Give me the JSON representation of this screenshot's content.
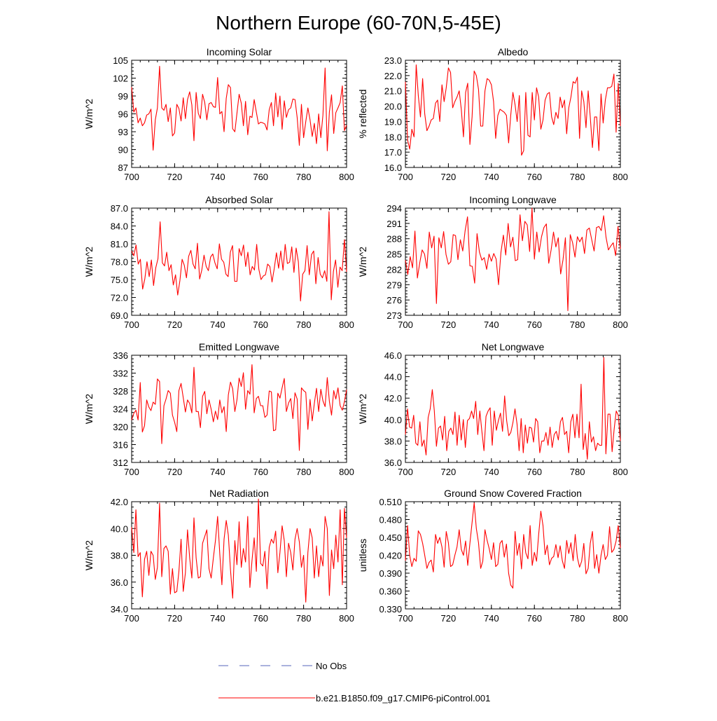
{
  "figure": {
    "title": "Northern Europe (60-70N,5-45E)",
    "line_color": "#ff0000",
    "obs_color": "#5566bb"
  },
  "legend": {
    "obs_label": "No Obs",
    "model_label": "b.e21.B1850.f09_g17.CMIP6-piControl.001"
  },
  "chart_data": [
    {
      "type": "line",
      "title": "Incoming Solar",
      "ylabel": "W/m^2",
      "xlim": [
        700,
        800
      ],
      "ylim": [
        87,
        105
      ],
      "xticks": [
        "700",
        "720",
        "740",
        "760",
        "780",
        "800"
      ],
      "yticks": [
        "87",
        "90",
        "93",
        "96",
        "99",
        "102",
        "105"
      ],
      "values": [
        100.5,
        96.3,
        97.0,
        94.5,
        95.3,
        94.0,
        94.5,
        95.8,
        96.0,
        96.8,
        89.9,
        95.0,
        97.0,
        104.0,
        97.0,
        96.6,
        97.6,
        94.7,
        97.0,
        92.3,
        92.8,
        97.6,
        96.9,
        94.8,
        98.7,
        95.2,
        98.4,
        99.7,
        97.5,
        91.5,
        99.6,
        96.1,
        95.2,
        99.3,
        97.9,
        95.0,
        97.7,
        97.9,
        97.2,
        97.1,
        102.1,
        96.0,
        96.4,
        93.0,
        98.6,
        100.9,
        100.4,
        93.5,
        93.0,
        96.1,
        99.3,
        97.8,
        94.0,
        98.1,
        92.5,
        95.6,
        95.4,
        98.4,
        96.3,
        94.3,
        94.6,
        94.5,
        94.3,
        93.3,
        96.7,
        97.9,
        94.0,
        99.5,
        95.5,
        99.0,
        93.4,
        98.2,
        95.4,
        96.7,
        97.0,
        98.5,
        98.4,
        95.4,
        90.7,
        97.6,
        92.0,
        94.7,
        97.0,
        95.0,
        92.2,
        94.4,
        91.0,
        96.0,
        92.0,
        95.8,
        103.7,
        89.8,
        96.3,
        99.2,
        92.7,
        96.2,
        97.0,
        97.9,
        100.7,
        93.2,
        94.1
      ]
    },
    {
      "type": "line",
      "title": "Albedo",
      "ylabel": "% reflected",
      "xlim": [
        700,
        800
      ],
      "ylim": [
        16.0,
        23.0
      ],
      "xticks": [
        "700",
        "720",
        "740",
        "760",
        "780",
        "800"
      ],
      "yticks": [
        "16.0",
        "17.0",
        "18.0",
        "19.0",
        "20.0",
        "21.0",
        "22.0",
        "23.0"
      ],
      "values": [
        21.6,
        17.8,
        17.2,
        18.5,
        18.0,
        22.7,
        20.7,
        19.3,
        21.8,
        19.5,
        18.4,
        18.7,
        19.1,
        19.2,
        20.2,
        20.4,
        19.0,
        21.4,
        20.3,
        21.2,
        22.5,
        22.2,
        19.9,
        20.3,
        20.6,
        21.0,
        19.8,
        18.0,
        20.9,
        21.5,
        17.5,
        19.3,
        22.3,
        22.0,
        21.1,
        18.7,
        18.7,
        21.0,
        21.8,
        21.7,
        21.4,
        20.3,
        17.9,
        19.4,
        19.8,
        19.7,
        19.6,
        19.4,
        17.6,
        19.4,
        20.9,
        20.1,
        19.0,
        20.7,
        16.8,
        17.1,
        20.9,
        18.1,
        18.0,
        20.9,
        19.1,
        21.2,
        20.6,
        18.5,
        19.1,
        20.4,
        20.8,
        20.9,
        19.3,
        18.8,
        19.6,
        19.2,
        20.6,
        19.9,
        20.4,
        18.2,
        19.9,
        20.6,
        21.6,
        21.5,
        21.9,
        17.9,
        21.0,
        20.3,
        18.6,
        21.0,
        19.3,
        17.3,
        19.3,
        19.3,
        17.1,
        20.8,
        18.9,
        20.4,
        21.2,
        21.2,
        21.3,
        22.1,
        18.3,
        21.5,
        18.7
      ]
    },
    {
      "type": "line",
      "title": "Absorbed Solar",
      "ylabel": "W/m^2",
      "xlim": [
        700,
        800
      ],
      "ylim": [
        69.0,
        87.0
      ],
      "xticks": [
        "700",
        "720",
        "740",
        "760",
        "780",
        "800"
      ],
      "yticks": [
        "69.0",
        "72.0",
        "75.0",
        "78.0",
        "81.0",
        "84.0",
        "87.0"
      ],
      "values": [
        79.8,
        79.0,
        80.8,
        77.6,
        78.4,
        73.4,
        75.1,
        78.0,
        75.5,
        78.3,
        74.0,
        77.0,
        78.5,
        84.7,
        77.8,
        77.3,
        79.6,
        76.5,
        77.5,
        74.1,
        75.8,
        72.4,
        74.8,
        78.4,
        77.4,
        75.3,
        78.9,
        79.9,
        77.6,
        76.8,
        81.1,
        75.1,
        76.6,
        79.1,
        77.2,
        76.5,
        78.8,
        79.3,
        77.8,
        76.8,
        81.0,
        78.4,
        77.9,
        75.9,
        75.5,
        79.6,
        80.7,
        74.7,
        74.7,
        80.2,
        79.0,
        80.8,
        77.2,
        79.6,
        75.8,
        77.2,
        76.6,
        80.9,
        76.7,
        75.0,
        75.6,
        75.8,
        77.6,
        77.2,
        74.6,
        76.8,
        79.5,
        76.9,
        79.8,
        76.6,
        80.9,
        77.7,
        77.9,
        80.5,
        76.2,
        80.3,
        78.0,
        71.4,
        75.9,
        76.5,
        80.7,
        75.8,
        79.2,
        79.8,
        74.3,
        78.7,
        75.9,
        75.3,
        76.5,
        74.7,
        86.4,
        71.6,
        76.4,
        78.3,
        73.7,
        77.1,
        76.5,
        81.7,
        76.3
      ]
    },
    {
      "type": "line",
      "title": "Incoming Longwave",
      "ylabel": "W/m^2",
      "xlim": [
        700,
        800
      ],
      "ylim": [
        273,
        294
      ],
      "xticks": [
        "700",
        "720",
        "740",
        "760",
        "780",
        "800"
      ],
      "yticks": [
        "273",
        "276",
        "279",
        "282",
        "285",
        "288",
        "291",
        "294"
      ],
      "values": [
        283.8,
        281.0,
        284.5,
        282.3,
        289.5,
        280.3,
        283.3,
        285.8,
        285.0,
        282.2,
        289.3,
        286.2,
        288.5,
        275.3,
        288.2,
        286.2,
        289.4,
        284.9,
        283.0,
        283.5,
        288.8,
        288.6,
        283.9,
        287.8,
        285.6,
        289.6,
        292.3,
        282.7,
        282.6,
        279.3,
        289.0,
        285.4,
        283.8,
        284.3,
        282.0,
        285.0,
        283.6,
        285.1,
        284.0,
        279.0,
        285.3,
        288.7,
        284.8,
        291.0,
        286.4,
        288.3,
        283.7,
        283.9,
        292.7,
        287.6,
        291.4,
        290.7,
        285.5,
        294.0,
        284.0,
        289.3,
        285.4,
        288.4,
        290.2,
        290.9,
        283.2,
        285.8,
        289.3,
        286.4,
        288.2,
        281.1,
        283.9,
        288.2,
        273.9,
        288.8,
        287.2,
        284.4,
        288.4,
        287.4,
        288.3,
        285.1,
        289.7,
        290.1,
        287.8,
        285.6,
        290.2,
        290.4,
        289.6,
        292.5,
        288.3,
        285.8,
        286.6,
        287.2,
        284.7,
        290.4,
        286.0
      ]
    },
    {
      "type": "line",
      "title": "Emitted Longwave",
      "ylabel": "W/m^2",
      "xlim": [
        700,
        800
      ],
      "ylim": [
        312,
        336
      ],
      "xticks": [
        "700",
        "720",
        "740",
        "760",
        "780",
        "800"
      ],
      "yticks": [
        "312",
        "316",
        "320",
        "324",
        "328",
        "332",
        "336"
      ],
      "values": [
        321.5,
        323.0,
        323.7,
        321.5,
        329.9,
        318.8,
        320.2,
        326.0,
        324.4,
        323.6,
        325.5,
        325.0,
        330.7,
        330.1,
        316.2,
        324.7,
        326.2,
        328.1,
        327.5,
        322.6,
        321.0,
        318.9,
        328.1,
        329.7,
        326.5,
        323.3,
        326.0,
        325.2,
        323.1,
        333.3,
        323.4,
        323.4,
        319.8,
        326.8,
        327.9,
        322.9,
        326.0,
        323.9,
        321.1,
        323.5,
        321.6,
        326.0,
        323.1,
        324.5,
        318.9,
        327.1,
        330.0,
        328.5,
        323.4,
        326.0,
        330.9,
        329.0,
        332.1,
        323.9,
        328.1,
        327.3,
        333.9,
        323.1,
        326.3,
        326.8,
        324.7,
        324.7,
        322.1,
        322.6,
        328.0,
        327.8,
        319.1,
        319.3,
        327.5,
        326.4,
        328.7,
        330.8,
        323.4,
        325.3,
        326.3,
        321.8,
        327.6,
        326.2,
        314.7,
        328.7,
        328.1,
        327.7,
        319.4,
        326.1,
        321.3,
        325.2,
        328.6,
        323.4,
        328.4,
        325.8,
        324.5,
        331.0,
        325.7,
        322.6,
        328.1,
        326.2,
        328.7,
        324.7,
        323.7,
        325.6,
        328.3
      ]
    },
    {
      "type": "line",
      "title": "Net Longwave",
      "ylabel": "W/m^2",
      "xlim": [
        700,
        800
      ],
      "ylim": [
        36.0,
        46.0
      ],
      "xticks": [
        "700",
        "720",
        "740",
        "760",
        "780",
        "800"
      ],
      "yticks": [
        "36.0",
        "38.0",
        "40.0",
        "42.0",
        "44.0",
        "46.0"
      ],
      "values": [
        38.6,
        41.0,
        39.3,
        39.2,
        40.4,
        37.8,
        37.6,
        39.8,
        37.5,
        38.1,
        36.7,
        40.2,
        41.0,
        42.8,
        40.8,
        37.5,
        39.2,
        39.4,
        38.1,
        40.3,
        37.1,
        38.9,
        39.2,
        38.6,
        40.7,
        37.6,
        40.4,
        38.1,
        40.0,
        37.4,
        39.9,
        40.1,
        40.8,
        40.1,
        41.7,
        38.6,
        40.8,
        38.9,
        37.1,
        40.3,
        40.8,
        41.1,
        37.6,
        40.8,
        39.0,
        39.9,
        40.6,
        38.9,
        42.2,
        39.9,
        38.5,
        38.8,
        39.7,
        41.0,
        39.6,
        37.1,
        40.1,
        36.9,
        39.5,
        37.8,
        39.3,
        39.2,
        37.9,
        40.1,
        39.8,
        36.9,
        38.0,
        38.0,
        38.8,
        37.6,
        39.3,
        37.4,
        38.6,
        38.9,
        38.1,
        39.8,
        40.2,
        38.6,
        38.9,
        36.9,
        39.8,
        40.5,
        38.3,
        40.5,
        38.3,
        43.3,
        37.2,
        38.7,
        36.3,
        39.8,
        37.9,
        38.4,
        37.1,
        37.8,
        37.6,
        37.6,
        45.8,
        36.8,
        40.5,
        40.5,
        37.0,
        39.1,
        40.8,
        40.4,
        38.0
      ]
    },
    {
      "type": "line",
      "title": "Net Radiation",
      "ylabel": "W/m^2",
      "xlim": [
        700,
        800
      ],
      "ylim": [
        34.0,
        42.0
      ],
      "xticks": [
        "700",
        "720",
        "740",
        "760",
        "780",
        "800"
      ],
      "yticks": [
        "34.0",
        "36.0",
        "38.0",
        "40.0",
        "42.0"
      ],
      "values": [
        40.1,
        38.2,
        41.4,
        37.9,
        38.2,
        34.9,
        37.7,
        38.3,
        36.5,
        38.3,
        38.0,
        36.2,
        37.1,
        41.9,
        36.4,
        38.5,
        38.7,
        38.3,
        35.1,
        37.0,
        35.2,
        35.3,
        36.8,
        39.2,
        35.3,
        36.7,
        39.9,
        37.8,
        36.3,
        40.8,
        37.8,
        36.3,
        36.4,
        38.9,
        39.4,
        39.9,
        37.0,
        36.3,
        37.8,
        39.1,
        40.9,
        38.1,
        35.8,
        39.2,
        40.6,
        39.5,
        36.9,
        34.8,
        39.1,
        37.3,
        40.5,
        37.1,
        38.5,
        37.5,
        40.9,
        35.6,
        37.6,
        39.3,
        36.8,
        42.2,
        37.4,
        37.2,
        38.3,
        35.5,
        38.6,
        39.2,
        38.9,
        39.8,
        36.7,
        38.2,
        40.2,
        39.1,
        36.4,
        38.9,
        38.2,
        36.9,
        39.2,
        40.0,
        39.0,
        37.1,
        38.0,
        34.5,
        38.2,
        40.0,
        39.3,
        36.3,
        38.7,
        36.4,
        38.0,
        37.2,
        40.9,
        40.0,
        35.0,
        38.4,
        37.0,
        39.5,
        37.5,
        41.4,
        35.8,
        41.5,
        39.3
      ]
    },
    {
      "type": "line",
      "title": "Ground Snow Covered Fraction",
      "ylabel": "unitless",
      "xlim": [
        700,
        800
      ],
      "ylim": [
        0.33,
        0.51
      ],
      "xticks": [
        "700",
        "720",
        "740",
        "760",
        "780",
        "800"
      ],
      "yticks": [
        "0.330",
        "0.360",
        "0.390",
        "0.420",
        "0.450",
        "0.480",
        "0.510"
      ],
      "values": [
        0.411,
        0.47,
        0.42,
        0.401,
        0.415,
        0.41,
        0.461,
        0.455,
        0.44,
        0.42,
        0.398,
        0.408,
        0.412,
        0.392,
        0.455,
        0.44,
        0.45,
        0.434,
        0.4,
        0.46,
        0.441,
        0.401,
        0.404,
        0.42,
        0.434,
        0.463,
        0.43,
        0.42,
        0.444,
        0.403,
        0.44,
        0.475,
        0.508,
        0.465,
        0.441,
        0.398,
        0.41,
        0.463,
        0.445,
        0.431,
        0.413,
        0.441,
        0.401,
        0.405,
        0.44,
        0.445,
        0.417,
        0.439,
        0.39,
        0.37,
        0.365,
        0.46,
        0.42,
        0.44,
        0.397,
        0.455,
        0.424,
        0.414,
        0.47,
        0.403,
        0.425,
        0.41,
        0.455,
        0.494,
        0.47,
        0.421,
        0.437,
        0.404,
        0.415,
        0.418,
        0.438,
        0.416,
        0.436,
        0.411,
        0.398,
        0.445,
        0.423,
        0.441,
        0.411,
        0.455,
        0.416,
        0.4,
        0.41,
        0.44,
        0.389,
        0.398,
        0.44,
        0.46,
        0.398,
        0.421,
        0.39,
        0.42,
        0.438,
        0.413,
        0.42,
        0.468,
        0.425,
        0.43,
        0.444,
        0.47,
        0.432
      ]
    }
  ]
}
